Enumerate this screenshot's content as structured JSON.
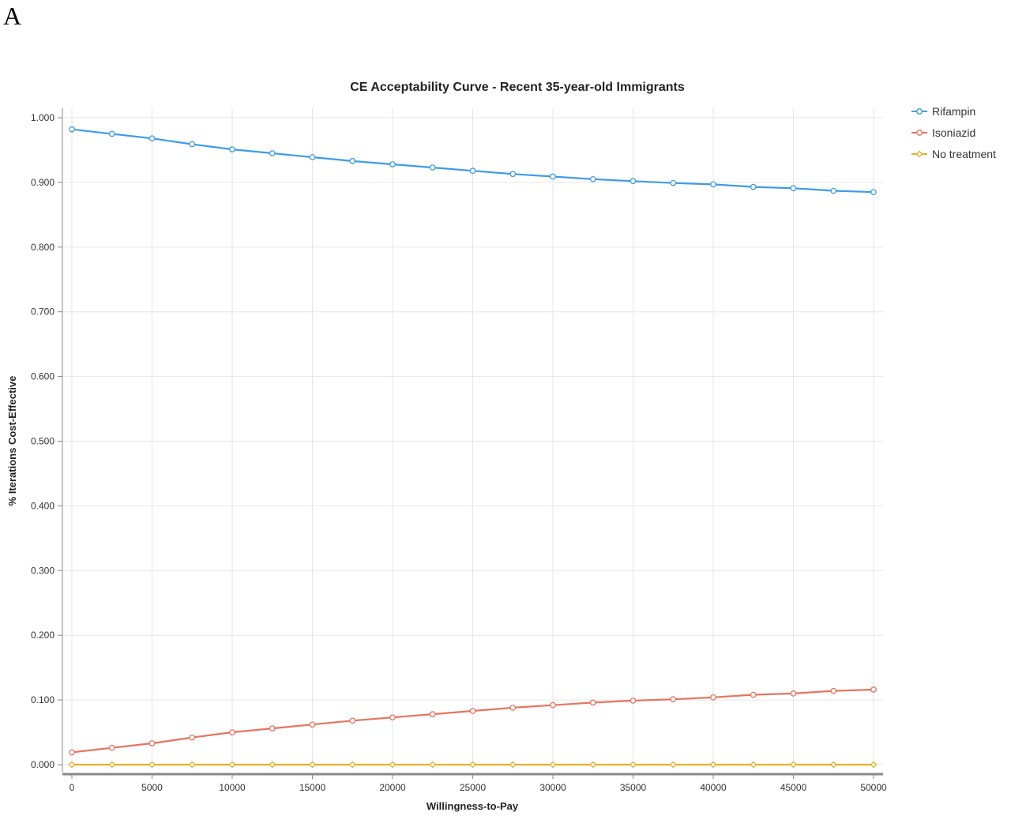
{
  "panel_label": "A",
  "chart_data": {
    "type": "line",
    "title": "CE Acceptability Curve - Recent 35-year-old Immigrants",
    "xlabel": "Willingness-to-Pay",
    "ylabel": "% Iterations Cost-Effective",
    "xlim": [
      0,
      50000
    ],
    "ylim": [
      0,
      1
    ],
    "xticks": [
      0,
      5000,
      10000,
      15000,
      20000,
      25000,
      30000,
      35000,
      40000,
      45000,
      50000
    ],
    "yticks": [
      0,
      0.1,
      0.2,
      0.3,
      0.4,
      0.5,
      0.6,
      0.7,
      0.8,
      0.9,
      1.0
    ],
    "ytick_labels": [
      "0.000",
      "0.100",
      "0.200",
      "0.300",
      "0.400",
      "0.500",
      "0.600",
      "0.700",
      "0.800",
      "0.900",
      "1.000"
    ],
    "grid": true,
    "legend_position": "top-right",
    "x": [
      0,
      2500,
      5000,
      7500,
      10000,
      12500,
      15000,
      17500,
      20000,
      22500,
      25000,
      27500,
      30000,
      32500,
      35000,
      37500,
      40000,
      42500,
      45000,
      47500,
      50000
    ],
    "series": [
      {
        "name": "Rifampin",
        "color": "#3d9be9",
        "values": [
          0.982,
          0.975,
          0.968,
          0.959,
          0.951,
          0.945,
          0.939,
          0.933,
          0.928,
          0.923,
          0.918,
          0.913,
          0.909,
          0.905,
          0.902,
          0.899,
          0.897,
          0.893,
          0.891,
          0.887,
          0.885
        ]
      },
      {
        "name": "Isoniazid",
        "color": "#e8735e",
        "values": [
          0.019,
          0.026,
          0.033,
          0.042,
          0.05,
          0.056,
          0.062,
          0.068,
          0.073,
          0.078,
          0.083,
          0.088,
          0.092,
          0.096,
          0.099,
          0.101,
          0.104,
          0.108,
          0.11,
          0.114,
          0.116
        ]
      },
      {
        "name": "No treatment",
        "color": "#e8b02a",
        "values": [
          0.0,
          0.0,
          0.0,
          0.0,
          0.0,
          0.0,
          0.0,
          0.0,
          0.0,
          0.0,
          0.0,
          0.0,
          0.0,
          0.0,
          0.0,
          0.0,
          0.0,
          0.0,
          0.0,
          0.0,
          0.0
        ]
      }
    ]
  }
}
